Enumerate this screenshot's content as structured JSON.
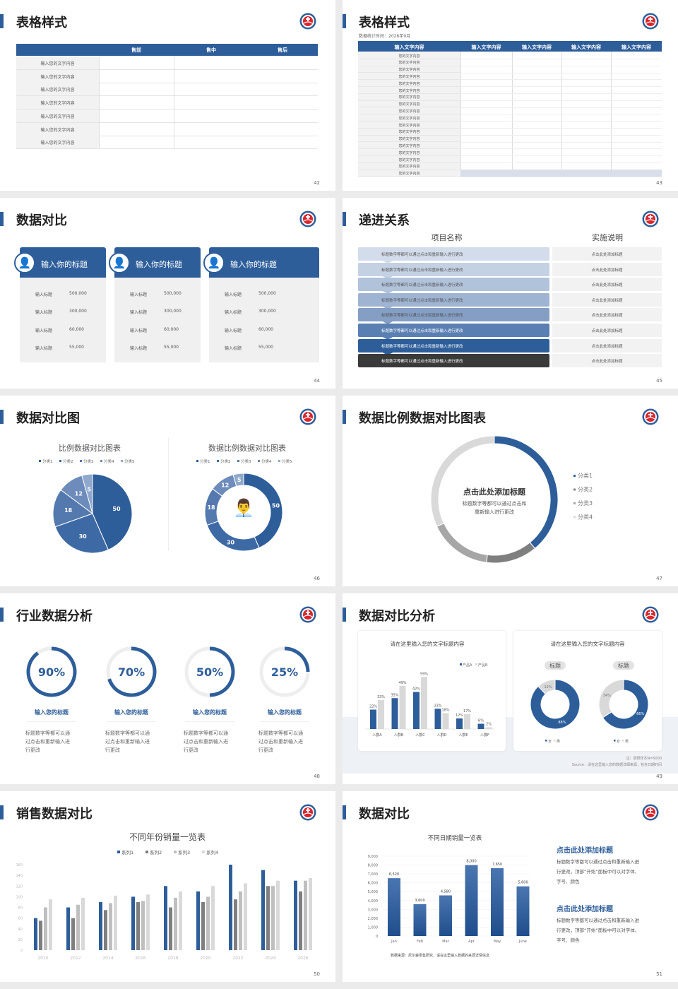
{
  "colors": {
    "primary": "#2e5e9a",
    "dark": "#3a3a3a",
    "gray": "#f0f0f0"
  },
  "slide42": {
    "title": "表格样式",
    "page": "42",
    "headers": [
      "",
      "售前",
      "售中",
      "售后"
    ],
    "rows": [
      "输入您的文字内容",
      "输入您的文字内容",
      "输入您的文字内容",
      "输入您的文字内容",
      "输入您的文字内容",
      "输入您的文字内容",
      "输入您的文字内容"
    ]
  },
  "slide43": {
    "title": "表格样式",
    "page": "43",
    "subtitle": "数据统计时间：2026年9月",
    "headers": [
      "输入文字内容",
      "输入文字内容",
      "输入文字内容",
      "输入文字内容",
      "输入文字内容"
    ],
    "rows": [
      "您的文字内容",
      "您的文字内容",
      "您的文字内容",
      "您的文字内容",
      "您的文字内容",
      "您的文字内容",
      "您的文字内容",
      "您的文字内容",
      "您的文字内容",
      "您的文字内容",
      "您的文字内容",
      "您的文字内容",
      "您的文字内容",
      "您的文字内容",
      "您的文字内容",
      "您的文字内容",
      "您的文字内容",
      "您的文字内容"
    ]
  },
  "slide44": {
    "title": "数据对比",
    "page": "44",
    "cards": [
      {
        "icon": "id-card-add-icon",
        "title": "输入你的标题",
        "rows": [
          [
            "输入标题",
            "500,000"
          ],
          [
            "输入标题",
            "300,000"
          ],
          [
            "输入标题",
            "60,000"
          ],
          [
            "输入标题",
            "55,000"
          ]
        ]
      },
      {
        "icon": "user-add-icon",
        "title": "输入你的标题",
        "rows": [
          [
            "输入标题",
            "500,000"
          ],
          [
            "输入标题",
            "300,000"
          ],
          [
            "输入标题",
            "60,000"
          ],
          [
            "输入标题",
            "55,000"
          ]
        ]
      },
      {
        "icon": "user-group-icon",
        "title": "输入你的标题",
        "rows": [
          [
            "输入标题",
            "500,000"
          ],
          [
            "输入标题",
            "300,000"
          ],
          [
            "输入标题",
            "60,000"
          ],
          [
            "输入标题",
            "55,000"
          ]
        ]
      }
    ]
  },
  "slide45": {
    "title": "递进关系",
    "page": "45",
    "col1": "项目名称",
    "col2": "实施说明",
    "items": [
      "标题数字等都可以通过点击和重新输入进行更改",
      "标题数字等都可以通过点击和重新输入进行更改",
      "标题数字等都可以通过点击和重新输入进行更改",
      "标题数字等都可以通过点击和重新输入进行更改",
      "标题数字等都可以通过点击和重新输入进行更改",
      "标题数字等都可以通过点击和重新输入进行更改",
      "标题数字等都可以通过点击和重新输入进行更改",
      "标题数字等都可以通过点击和重新输入进行更改"
    ],
    "notes": [
      "点击此处添加标题",
      "点击此处添加标题",
      "点击此处添加标题",
      "点击此处添加标题",
      "点击此处添加标题",
      "点击此处添加标题",
      "点击此处添加标题",
      "点击此处添加标题"
    ],
    "row_colors": [
      "#d3dcea",
      "#c4d1e3",
      "#b1c3db",
      "#9fb4d2",
      "#849ec4",
      "#5a7fb3",
      "#2e5e9a",
      "#3a3a3a"
    ]
  },
  "slide46": {
    "title": "数据对比图",
    "page": "46"
  },
  "slide47": {
    "title": "数据比例数据对比图表",
    "page": "47",
    "center_title": "点击此处添加标题",
    "center_text": [
      "标题数字等都可以通过点击和",
      "重新输入进行更改"
    ]
  },
  "slide48": {
    "title": "行业数据分析",
    "page": "48",
    "items": [
      {
        "value": 0.9,
        "label": "90%",
        "title": "输入您的标题",
        "text": [
          "标题数字等都可以通",
          "过点击和重新输入进",
          "行更改"
        ]
      },
      {
        "value": 0.7,
        "label": "70%",
        "title": "输入您的标题",
        "text": [
          "标题数字等都可以通",
          "过点击和重新输入进",
          "行更改"
        ]
      },
      {
        "value": 0.5,
        "label": "50%",
        "title": "输入您的标题",
        "text": [
          "标题数字等都可以通",
          "过点击和重新输入进",
          "行更改"
        ]
      },
      {
        "value": 0.25,
        "label": "25%",
        "title": "输入您的标题",
        "text": [
          "标题数字等都可以通",
          "过点击和重新输入进",
          "行更改"
        ]
      }
    ]
  },
  "slide49": {
    "title": "数据对比分析",
    "page": "49",
    "card2_title": "请在这里输入您的文字标题内容",
    "tags": [
      "标题",
      "标题"
    ],
    "donut_legend": [
      "女",
      "男"
    ],
    "note": "注：调研样本N=5000",
    "source": "Source：请在这里输入您的数据详细来源，包含日期时间"
  },
  "slide50": {
    "title": "销售数据对比",
    "page": "50"
  },
  "slide51": {
    "title": "数据对比",
    "page": "51",
    "source": "数据来源：尼尔森零售研究，请在这里输入数据的来源详情信息",
    "blocks": [
      {
        "title": "点击此处添加标题",
        "text": [
          "标题数字等都可以通过点击和重新输入进",
          "行更改，顶部“开始”面板中可以对字体、",
          "字号、颜色"
        ]
      },
      {
        "title": "点击此处添加标题",
        "text": [
          "标题数字等都可以通过点击和重新输入进",
          "行更改，顶部“开始”面板中可以对字体、",
          "字号、颜色"
        ]
      }
    ]
  },
  "chart_data": [
    {
      "id": "pie46",
      "type": "pie",
      "title": "比例数据对比图表",
      "categories": [
        "分类1",
        "分类2",
        "分类3",
        "分类4",
        "分类5"
      ],
      "values": [
        50,
        30,
        18,
        12,
        5
      ],
      "colors": [
        "#2e5e9a",
        "#3d6aa5",
        "#5479ae",
        "#6d8cbb",
        "#8fa8cc"
      ],
      "legend": "top"
    },
    {
      "id": "donut46",
      "type": "pie",
      "title": "数据比例数据对比图表",
      "categories": [
        "分类1",
        "分类2",
        "分类3",
        "分类4",
        "分类5"
      ],
      "values": [
        50,
        30,
        18,
        12,
        5
      ],
      "colors": [
        "#2e5e9a",
        "#3d6aa5",
        "#5479ae",
        "#6d8cbb",
        "#8fa8cc"
      ],
      "legend": "top"
    },
    {
      "id": "donut47",
      "type": "pie",
      "categories": [
        "分类1",
        "分类2",
        "分类3",
        "分类4"
      ],
      "values": [
        39,
        13,
        16,
        32
      ],
      "colors": [
        "#2e5e9a",
        "#7f7f7f",
        "#a6a6a6",
        "#d9d9d9"
      ],
      "legend": "right"
    },
    {
      "id": "bar49",
      "type": "bar",
      "title": "请在这里输入您的文字标题内容",
      "categories": [
        "人群A",
        "人群B",
        "人群C",
        "人群D",
        "人群E",
        "人群F"
      ],
      "series": [
        {
          "name": "产品A",
          "values": [
            22,
            35,
            42,
            23,
            12,
            6
          ],
          "color": "#2e5e9a"
        },
        {
          "name": "产品B",
          "values": [
            33,
            49,
            59,
            18,
            17,
            2
          ],
          "color": "#d9d9d9"
        }
      ],
      "unit": "%",
      "legend": "top-right"
    },
    {
      "id": "donuts49",
      "type": "pie",
      "series": [
        {
          "name": "标题",
          "categories": [
            "女",
            "男"
          ],
          "values": [
            88,
            12
          ]
        },
        {
          "name": "标题",
          "categories": [
            "女",
            "男"
          ],
          "values": [
            66,
            34
          ]
        }
      ],
      "colors": [
        "#2e5e9a",
        "#d9d9d9"
      ]
    },
    {
      "id": "bar50",
      "type": "bar",
      "title": "不同年份销量一览表",
      "categories": [
        "2010",
        "2012",
        "2014",
        "2016",
        "2018",
        "2020",
        "2022",
        "2024",
        "2026"
      ],
      "series": [
        {
          "name": "系列1",
          "values": [
            60,
            80,
            90,
            100,
            120,
            110,
            160,
            150,
            130
          ],
          "color": "#2e5e9a"
        },
        {
          "name": "系列2",
          "values": [
            55,
            60,
            75,
            90,
            80,
            90,
            95,
            120,
            110
          ],
          "color": "#7f7f7f"
        },
        {
          "name": "系列3",
          "values": [
            80,
            85,
            88,
            92,
            98,
            100,
            110,
            120,
            130
          ],
          "color": "#bfbfbf"
        },
        {
          "name": "系列4",
          "values": [
            95,
            98,
            102,
            104,
            110,
            120,
            125,
            130,
            135
          ],
          "color": "#d9d9d9"
        }
      ],
      "ylim": [
        0,
        160
      ],
      "yticks": [
        0,
        20,
        40,
        60,
        80,
        100,
        120,
        140,
        160
      ],
      "legend": "top"
    },
    {
      "id": "bar51",
      "type": "bar",
      "title": "不同日期销量一览表",
      "categories": [
        "Jan",
        "Feb",
        "Mar",
        "Apr",
        "May",
        "June"
      ],
      "values": [
        6520,
        3600,
        4580,
        8000,
        7650,
        5600
      ],
      "labels": [
        "6,520",
        "3,600",
        "4,580",
        "8,000",
        "7,650",
        "5,600"
      ],
      "ylim": [
        0,
        9000
      ],
      "yticks": [
        "0",
        "1,000",
        "2,000",
        "3,000",
        "4,000",
        "5,000",
        "6,000",
        "7,000",
        "8,000",
        "9,000"
      ],
      "color": "#2e5e9a"
    }
  ]
}
